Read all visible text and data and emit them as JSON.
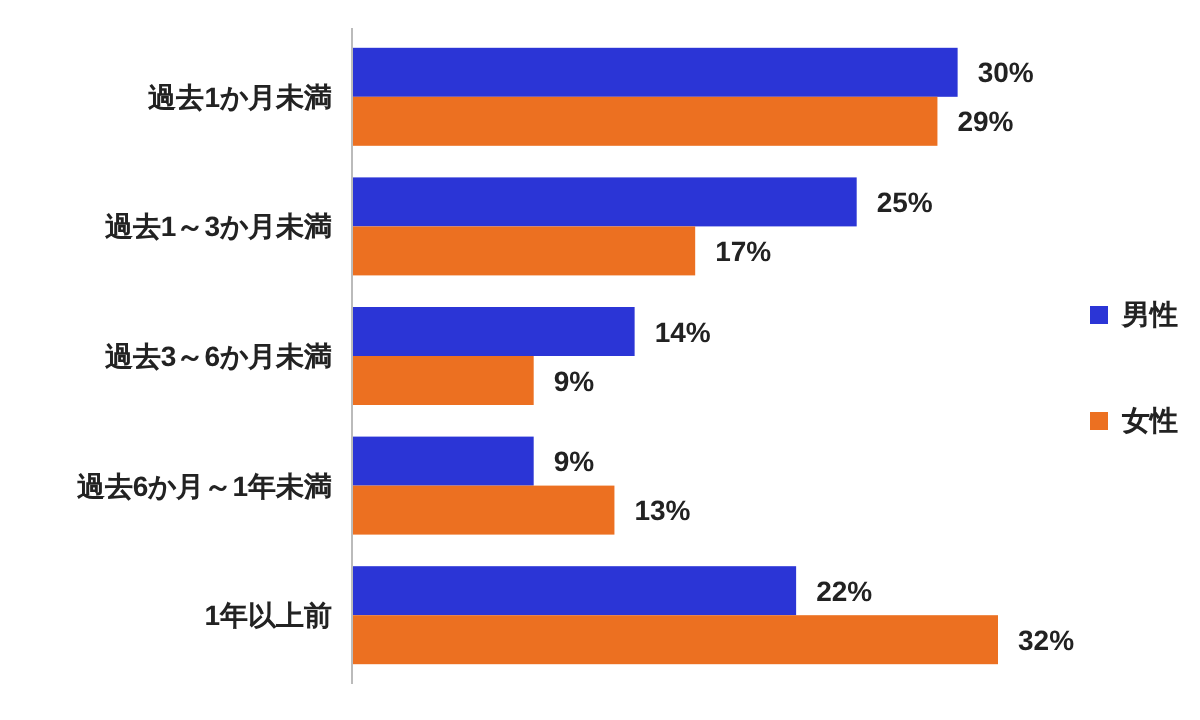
{
  "chart_data": {
    "type": "bar",
    "orientation": "horizontal",
    "categories": [
      "過去1か月未満",
      "過去1～3か月未満",
      "過去3～6か月未満",
      "過去6か月～1年未満",
      "1年以上前"
    ],
    "series": [
      {
        "name": "男性",
        "color": "#2b35d6",
        "values": [
          30,
          25,
          14,
          9,
          22
        ],
        "value_labels": [
          "30%",
          "25%",
          "14%",
          "9%",
          "22%"
        ]
      },
      {
        "name": "女性",
        "color": "#ec7021",
        "values": [
          29,
          17,
          9,
          13,
          32
        ],
        "value_labels": [
          "29%",
          "17%",
          "9%",
          "13%",
          "32%"
        ]
      }
    ],
    "legend": "right"
  }
}
